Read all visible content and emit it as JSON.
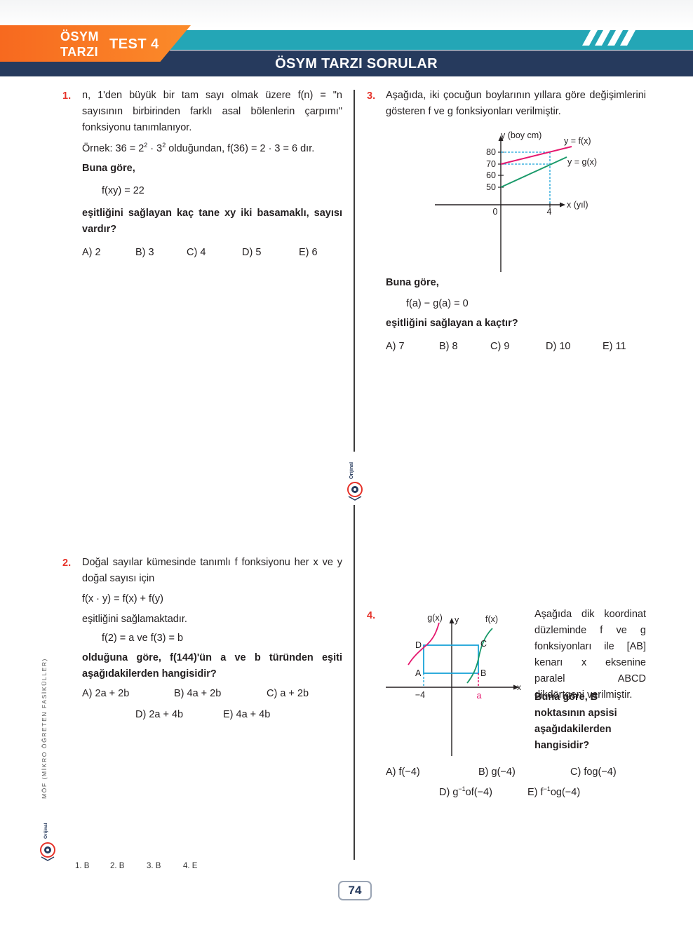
{
  "header": {
    "tab_line1": "ÖSYM",
    "tab_line2": "TARZI",
    "test_label": "TEST 4",
    "section_title": "ÖSYM TARZI SORULAR"
  },
  "q1": {
    "num": "1.",
    "p1": "n, 1'den büyük bir tam sayı olmak üzere f(n) = \"n sayısının birbirinden farklı asal bölenlerin çarpımı\" fonksiyonu tanımlanıyor.",
    "ex_a": "Örnek: 36 = 2",
    "ex_sup1": "2",
    "ex_b": " · 3",
    "ex_sup2": "2",
    "ex_c": " olduğundan, f(36) = 2 · 3 = 6 dır.",
    "lead": "Buna göre,",
    "eq": "f(xy) = 22",
    "question": "eşitliğini sağlayan kaç tane xy iki basamaklı, sayısı vardır?",
    "options": [
      "A) 2",
      "B) 3",
      "C) 4",
      "D) 5",
      "E) 6"
    ]
  },
  "q2": {
    "num": "2.",
    "p1": "Doğal sayılar kümesinde tanımlı f fonksiyonu her x ve y doğal sayısı için",
    "eq1": "f(x · y) = f(x) + f(y)",
    "p2": "eşitliğini sağlamaktadır.",
    "eq2": "f(2) = a ve f(3) = b",
    "question": "olduğuna göre, f(144)'ün a ve b türünden eşiti aşağıdakilerden hangisidir?",
    "options": [
      "A) 2a + 2b",
      "B) 4a + 2b",
      "C) a + 2b",
      "D) 2a + 4b",
      "E) 4a + 4b"
    ]
  },
  "q3": {
    "num": "3.",
    "p1": "Aşağıda, iki çocuğun boylarının yıllara göre değişimlerini gösteren f ve g fonksiyonları verilmiştir.",
    "graph": {
      "y_axis_label": "y (boy cm)",
      "x_axis_label": "x (yıl)",
      "y_ticks": [
        "80",
        "70",
        "60",
        "50"
      ],
      "origin": "0",
      "x_tick": "4",
      "f_label": "y = f(x)",
      "g_label": "y = g(x)",
      "f_color": "#e5176e",
      "g_color": "#1a9a6a",
      "guide_color": "#1aa3d9"
    },
    "lead": "Buna göre,",
    "eq": "f(a) − g(a) = 0",
    "question": "eşitliğini sağlayan a kaçtır?",
    "options": [
      "A) 7",
      "B) 8",
      "C) 9",
      "D) 10",
      "E) 11"
    ]
  },
  "q4": {
    "num": "4.",
    "p1": "Aşağıda dik koordinat düzleminde f ve g fonksiyonları ile [AB] kenarı x eksenine paralel ABCD dikdörtgeni verilmiştir.",
    "question": "Buna göre, B noktasının apsisi aşağıdakilerden hangisidir?",
    "graph": {
      "g_label": "g(x)",
      "f_label": "f(x)",
      "y_label": "y",
      "x_label": "x",
      "point_a": "A",
      "point_b": "B",
      "point_c": "C",
      "point_d": "D",
      "x_neg": "−4",
      "x_a": "a"
    },
    "options": {
      "a": "A) f(−4)",
      "b": "B) g(−4)",
      "c": "C) fog(−4)",
      "d_pre": "D) g",
      "d_sup": "−1",
      "d_post": "of(−4)",
      "e_pre": "E) f",
      "e_sup": "−1",
      "e_post": "og(−4)"
    }
  },
  "answers": [
    "1. B",
    "2. B",
    "3. B",
    "4. E"
  ],
  "footer": {
    "series": "MÖF (MİKRO ÖĞRETEN FASİKÜLLER)",
    "brand": "Orijinal",
    "page": "74"
  }
}
